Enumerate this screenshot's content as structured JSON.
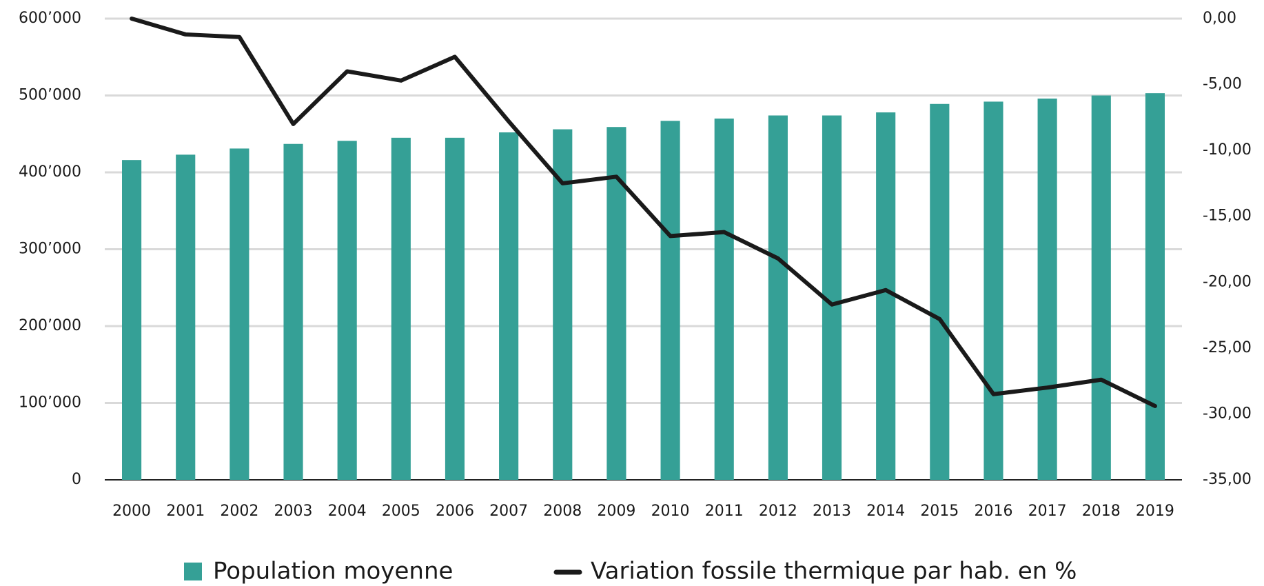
{
  "chart_data": {
    "type": "bar_line",
    "categories": [
      "2000",
      "2001",
      "2002",
      "2003",
      "2004",
      "2005",
      "2006",
      "2007",
      "2008",
      "2009",
      "2010",
      "2011",
      "2012",
      "2013",
      "2014",
      "2015",
      "2016",
      "2017",
      "2018",
      "2019"
    ],
    "series": [
      {
        "name": "Population moyenne",
        "type": "bar",
        "color": "#35a096",
        "values": [
          416000,
          423000,
          431000,
          437000,
          441000,
          445000,
          445000,
          452000,
          456000,
          459000,
          467000,
          470000,
          474000,
          474000,
          478000,
          489000,
          492000,
          496000,
          500000,
          503000
        ]
      },
      {
        "name": "Variation fossile thermique par hab. en %",
        "type": "line",
        "axis": "y2",
        "color": "#1a1a1a",
        "values": [
          0,
          -1.2,
          -1.4,
          -8.0,
          -4.0,
          -4.7,
          -2.9,
          -7.8,
          -12.5,
          -12.0,
          -16.5,
          -16.2,
          -18.2,
          -21.7,
          -20.6,
          -22.8,
          -28.5,
          -28.0,
          -27.4,
          -29.4
        ]
      }
    ],
    "ylim": [
      0,
      600000
    ],
    "yticks": [
      {
        "value": 0,
        "label": "0"
      },
      {
        "value": 100000,
        "label": "100’000"
      },
      {
        "value": 200000,
        "label": "200’000"
      },
      {
        "value": 300000,
        "label": "300’000"
      },
      {
        "value": 400000,
        "label": "400’000"
      },
      {
        "value": 500000,
        "label": "500’000"
      },
      {
        "value": 600000,
        "label": "600’000"
      }
    ],
    "y2lim": [
      -35,
      0
    ],
    "y2ticks": [
      {
        "value": -35,
        "label": "-35,00"
      },
      {
        "value": -30,
        "label": "-30,00"
      },
      {
        "value": -25,
        "label": "-25,00"
      },
      {
        "value": -20,
        "label": "-20,00"
      },
      {
        "value": -15,
        "label": "-15,00"
      },
      {
        "value": -10,
        "label": "-10,00"
      },
      {
        "value": -5,
        "label": "-5,00"
      },
      {
        "value": 0,
        "label": "0,00"
      }
    ],
    "grid": true,
    "legend": "bottom"
  }
}
